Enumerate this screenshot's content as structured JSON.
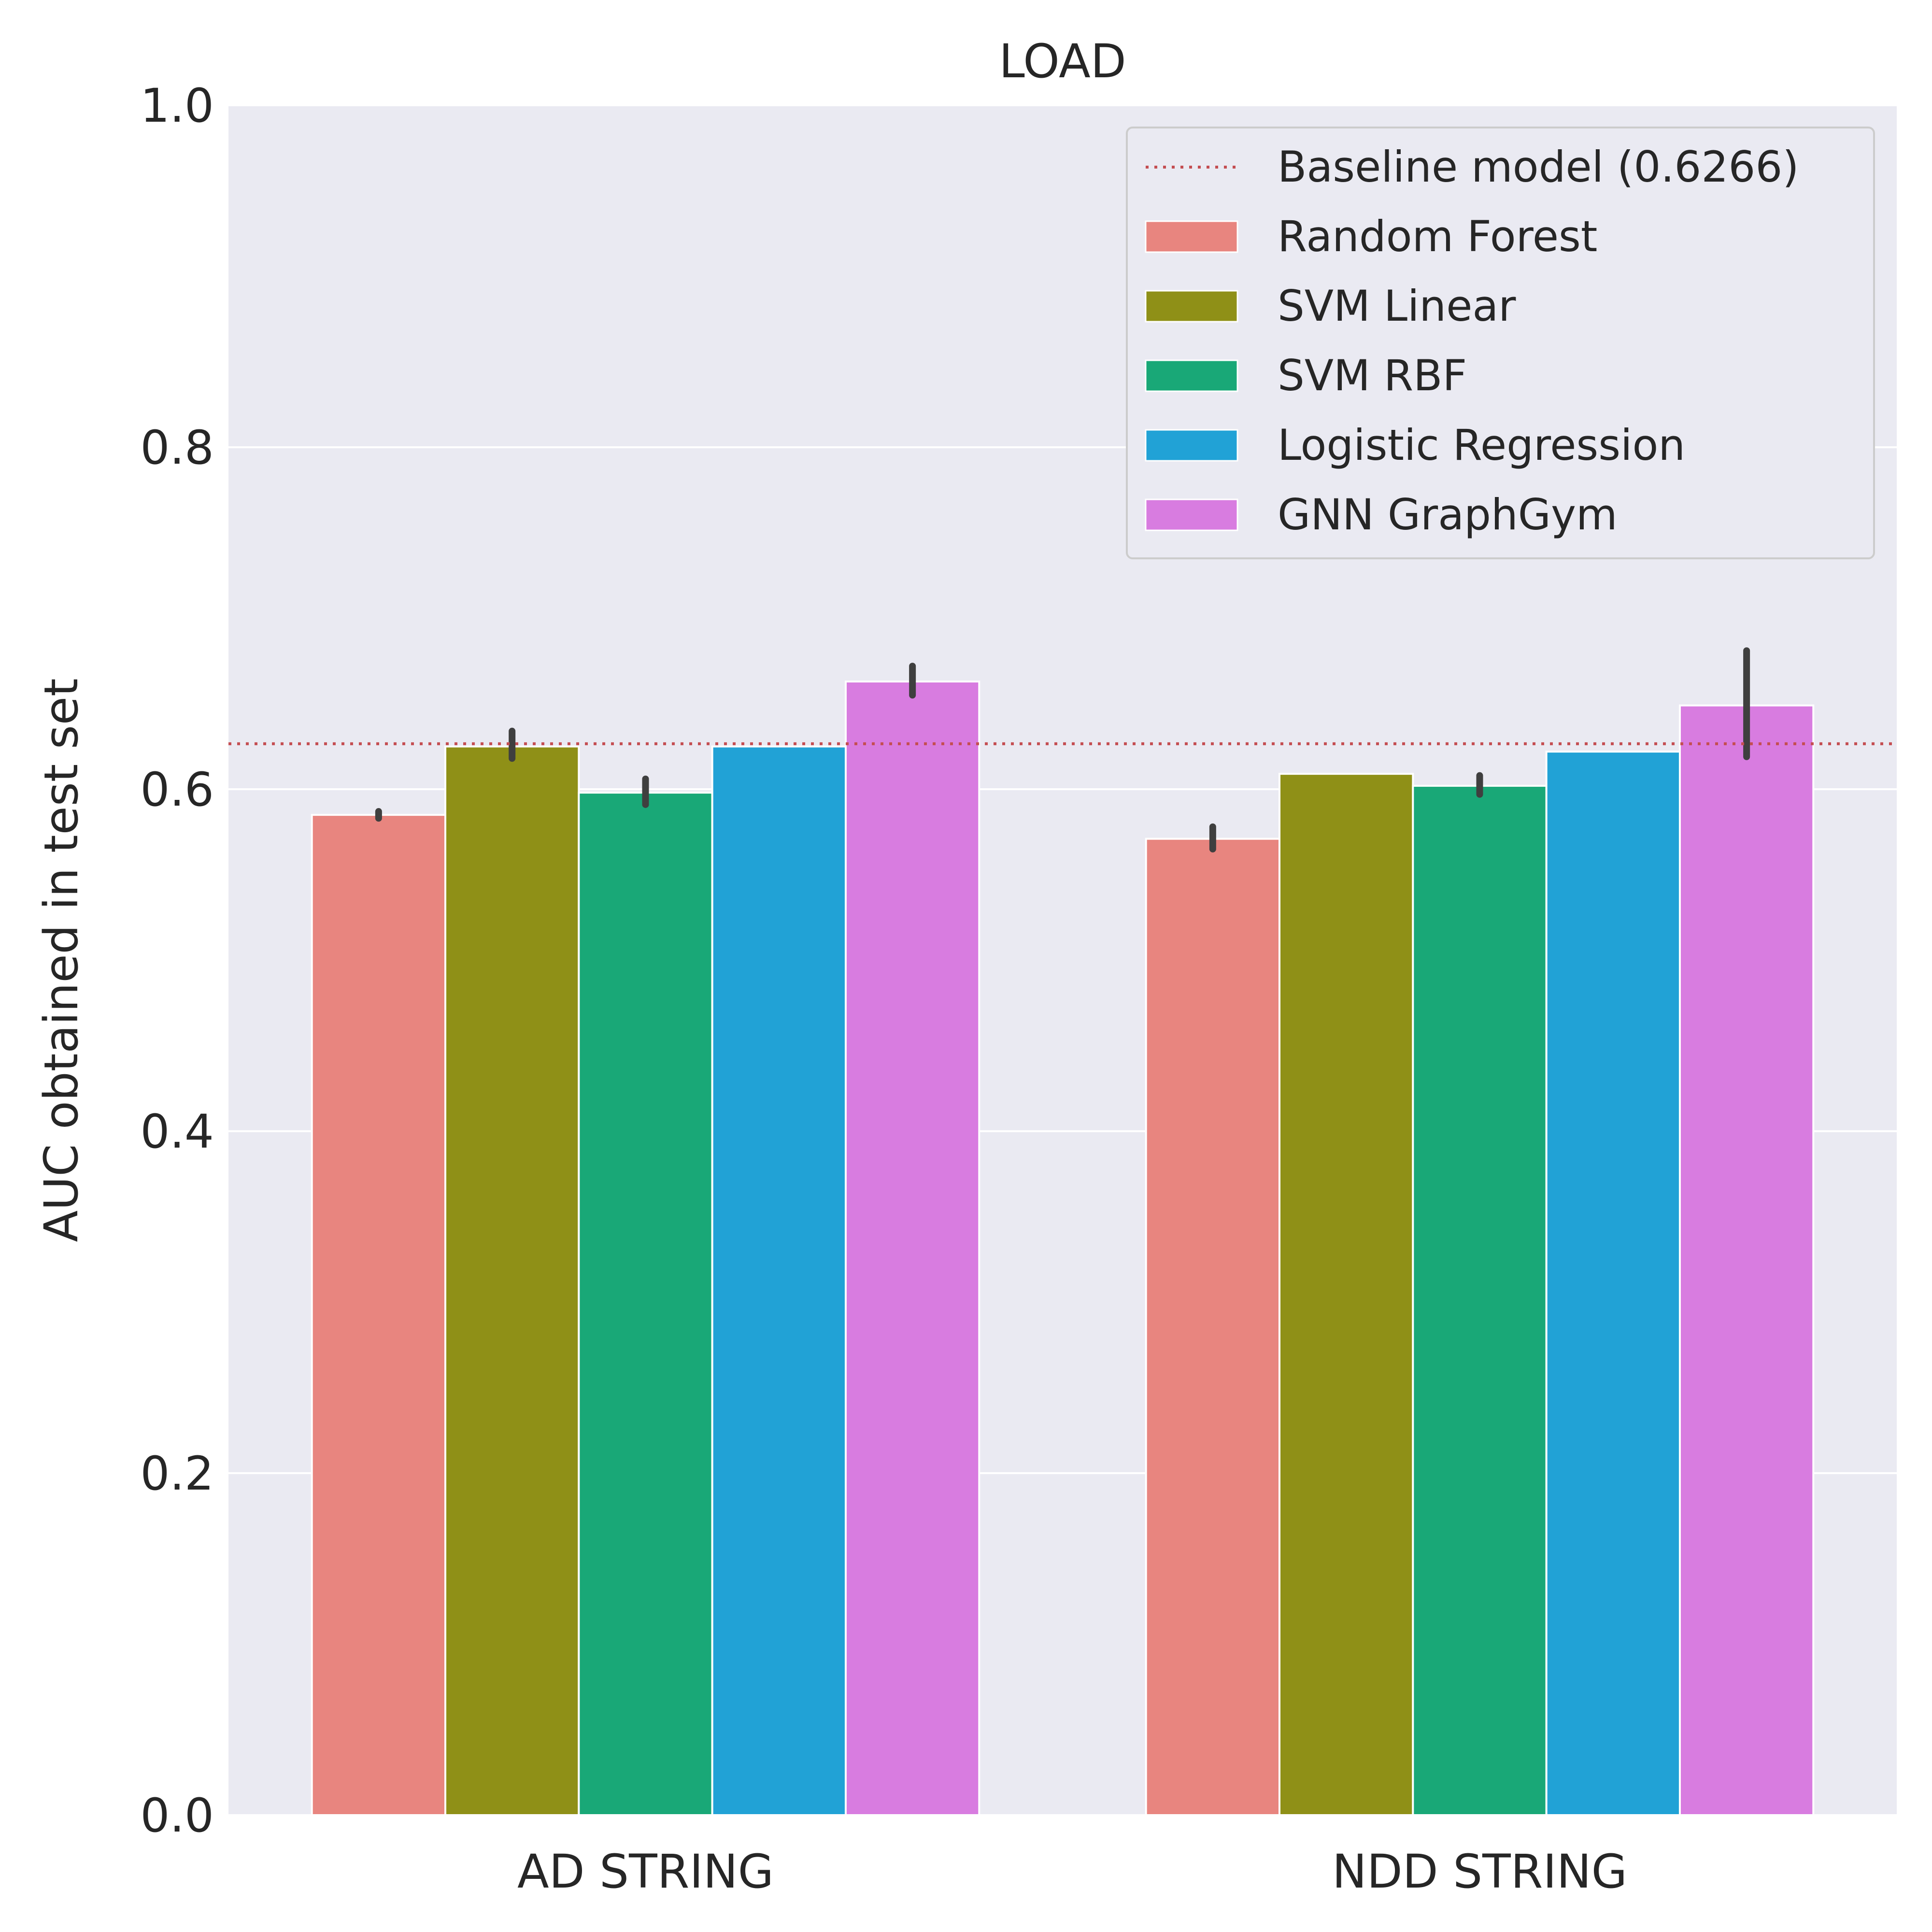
{
  "chart_data": {
    "type": "bar",
    "title": "LOAD",
    "xlabel": "",
    "ylabel": "AUC obtained in test set",
    "ylim": [
      0,
      1.0
    ],
    "yticks": [
      "0.0",
      "0.2",
      "0.4",
      "0.6",
      "0.8",
      "1.0"
    ],
    "grid": true,
    "legend_position": "top-right",
    "categories": [
      "AD STRING",
      "NDD STRING"
    ],
    "baseline": {
      "label": "Baseline model (0.6266)",
      "value": 0.6266,
      "color": "#c44e52"
    },
    "series": [
      {
        "name": "Random Forest",
        "color": "#e8857f",
        "values": [
          0.585,
          0.571
        ],
        "err_low": [
          0.583,
          0.565
        ],
        "err_high": [
          0.587,
          0.578
        ]
      },
      {
        "name": "SVM Linear",
        "color": "#8f9017",
        "values": [
          0.625,
          0.609
        ],
        "err_low": [
          0.618,
          0.609
        ],
        "err_high": [
          0.634,
          0.609
        ]
      },
      {
        "name": "SVM RBF",
        "color": "#19a877",
        "values": [
          0.598,
          0.602
        ],
        "err_low": [
          0.591,
          0.597
        ],
        "err_high": [
          0.606,
          0.608
        ]
      },
      {
        "name": "Logistic Regression",
        "color": "#21a2d6",
        "values": [
          0.625,
          0.622
        ],
        "err_low": [
          0.625,
          0.622
        ],
        "err_high": [
          0.625,
          0.622
        ]
      },
      {
        "name": "GNN GraphGym",
        "color": "#d87ce0",
        "values": [
          0.663,
          0.649
        ],
        "err_low": [
          0.655,
          0.619
        ],
        "err_high": [
          0.672,
          0.681
        ]
      }
    ]
  }
}
